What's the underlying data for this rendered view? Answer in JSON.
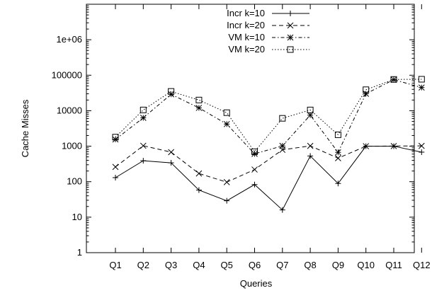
{
  "chart_data": {
    "type": "line",
    "xlabel": "Queries",
    "ylabel": "Cache Misses",
    "yscale": "log",
    "ylim": [
      1,
      10000000
    ],
    "yticks": [
      {
        "value": 1,
        "label": "1"
      },
      {
        "value": 10,
        "label": "10"
      },
      {
        "value": 100,
        "label": "100"
      },
      {
        "value": 1000,
        "label": "1000"
      },
      {
        "value": 10000,
        "label": "10000"
      },
      {
        "value": 100000,
        "label": "100000"
      },
      {
        "value": 1000000,
        "label": "1e+06"
      }
    ],
    "categories": [
      "Q1",
      "Q2",
      "Q3",
      "Q4",
      "Q5",
      "Q6",
      "Q7",
      "Q8",
      "Q9",
      "Q10",
      "Q11",
      "Q12"
    ],
    "grid": false,
    "legend_position": "top-right",
    "series": [
      {
        "name": "Incr k=10",
        "marker": "plus",
        "dash": "solid",
        "values": [
          130,
          390,
          340,
          58,
          29,
          83,
          16,
          530,
          89,
          1000,
          1000,
          680
        ]
      },
      {
        "name": "Incr k=20",
        "marker": "x",
        "dash": "dashed",
        "values": [
          260,
          1030,
          680,
          170,
          97,
          220,
          790,
          1020,
          460,
          1000,
          1010,
          1020
        ]
      },
      {
        "name": "VM k=10",
        "marker": "star",
        "dash": "dash-dot",
        "values": [
          1550,
          6300,
          29000,
          12000,
          4200,
          610,
          1020,
          7500,
          670,
          30000,
          75000,
          45000
        ]
      },
      {
        "name": "VM k=20",
        "marker": "square",
        "dash": "dotted",
        "values": [
          1800,
          10500,
          35000,
          20000,
          8800,
          700,
          6100,
          10500,
          2100,
          39000,
          76000,
          77000
        ]
      }
    ]
  }
}
